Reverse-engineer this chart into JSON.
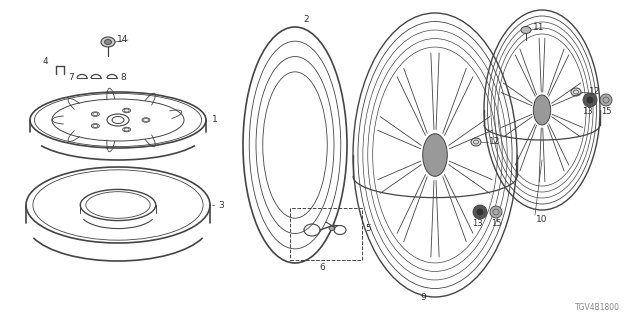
{
  "bg_color": "#ffffff",
  "line_color": "#444444",
  "label_color": "#333333",
  "watermark": "TGV4B1800",
  "fig_w": 6.4,
  "fig_h": 3.2,
  "dpi": 100
}
